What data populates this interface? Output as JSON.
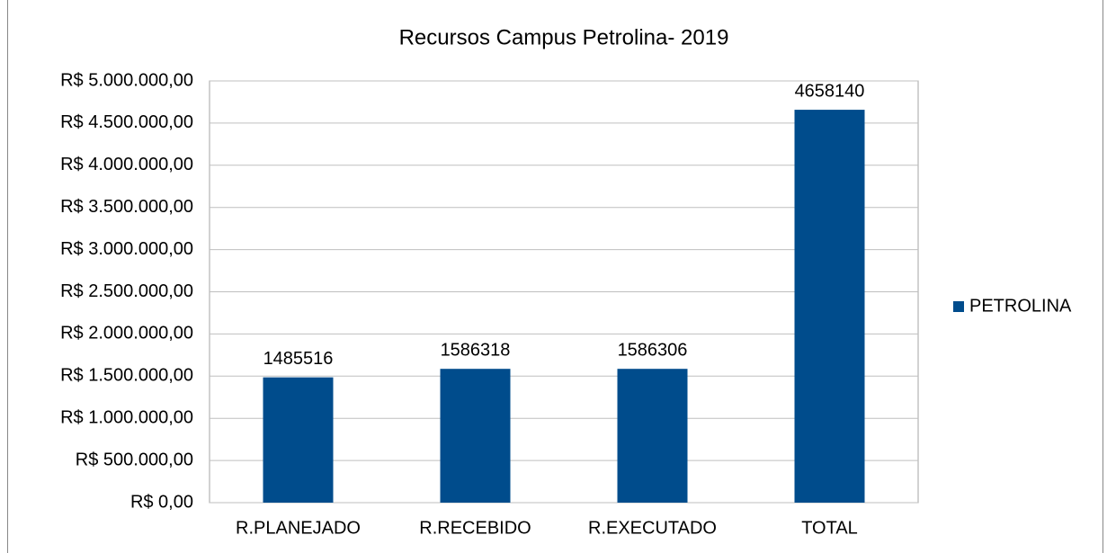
{
  "chart_data": {
    "type": "bar",
    "title": "Recursos Campus Petrolina- 2019",
    "categories": [
      "R.PLANEJADO",
      "R.RECEBIDO",
      "R.EXECUTADO",
      "TOTAL"
    ],
    "series": [
      {
        "name": "PETROLINA",
        "color": "#004c8c",
        "values": [
          1485516,
          1586318,
          1586306,
          4658140
        ]
      }
    ],
    "ylim": [
      0,
      5000000
    ],
    "yticks": [
      {
        "value": 0,
        "label": "R$ 0,00"
      },
      {
        "value": 500000,
        "label": "R$ 500.000,00"
      },
      {
        "value": 1000000,
        "label": "R$ 1.000.000,00"
      },
      {
        "value": 1500000,
        "label": "R$ 1.500.000,00"
      },
      {
        "value": 2000000,
        "label": "R$ 2.000.000,00"
      },
      {
        "value": 2500000,
        "label": "R$ 2.500.000,00"
      },
      {
        "value": 3000000,
        "label": "R$ 3.000.000,00"
      },
      {
        "value": 3500000,
        "label": "R$ 3.500.000,00"
      },
      {
        "value": 4000000,
        "label": "R$ 4.000.000,00"
      },
      {
        "value": 4500000,
        "label": "R$ 4.500.000,00"
      },
      {
        "value": 5000000,
        "label": "R$ 5.000.000,00"
      }
    ],
    "grid": true,
    "legend": "right"
  }
}
